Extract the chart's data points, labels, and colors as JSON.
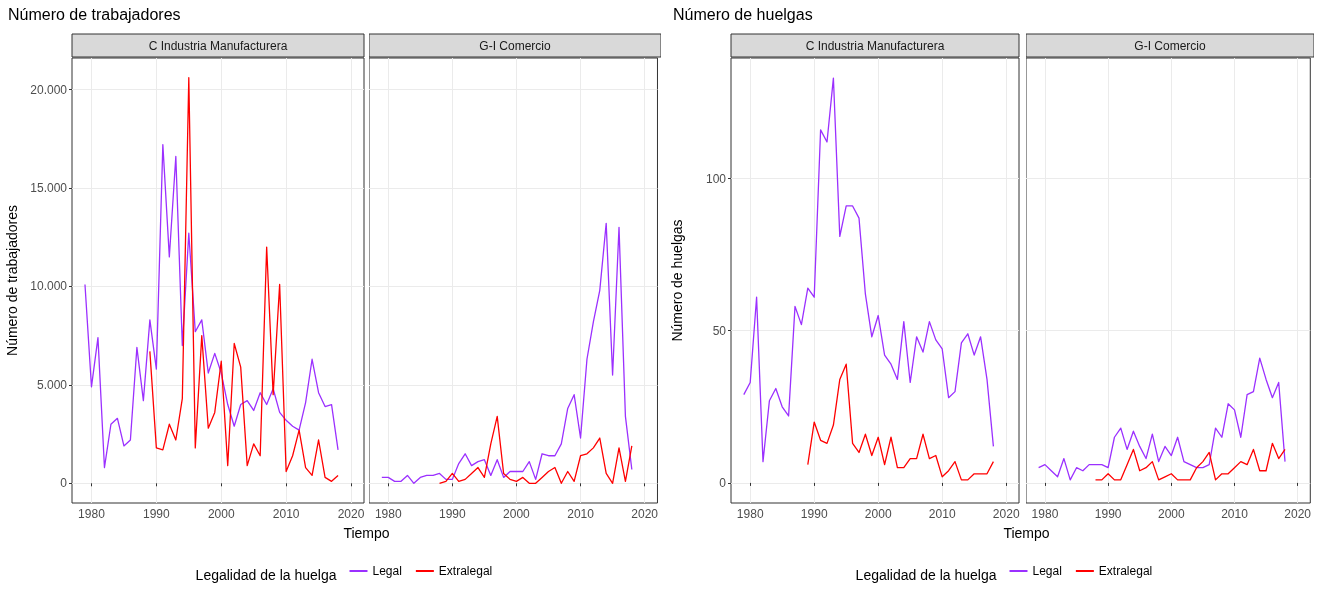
{
  "chart_data": [
    {
      "type": "line",
      "title": "Número de trabajadores",
      "subtitle": "C Industria Manufacturera",
      "xlabel": "Tiempo",
      "ylabel": "Número de trabajadores",
      "legend_title": "Legalidad de la huelga",
      "legend": "bottom",
      "grid": true,
      "xlim": [
        1977,
        2022
      ],
      "xticks": [
        1980,
        1990,
        2000,
        2010,
        2020
      ],
      "ylim": [
        -1000,
        21600
      ],
      "yticks": [
        0,
        {
          "value": 5000,
          "label": "5.000"
        },
        {
          "value": 10000,
          "label": "10.000"
        },
        {
          "value": 15000,
          "label": "15.000"
        },
        {
          "value": 20000,
          "label": "20.000"
        }
      ],
      "x": [
        1979,
        1980,
        1981,
        1982,
        1983,
        1984,
        1985,
        1986,
        1987,
        1988,
        1989,
        1990,
        1991,
        1992,
        1993,
        1994,
        1995,
        1996,
        1997,
        1998,
        1999,
        2000,
        2001,
        2002,
        2003,
        2004,
        2005,
        2006,
        2007,
        2008,
        2009,
        2010,
        2011,
        2012,
        2013,
        2014,
        2015,
        2016,
        2017,
        2018
      ],
      "series": [
        {
          "name": "Legal",
          "color": "#9b30ff",
          "values": [
            10100,
            4900,
            7400,
            800,
            3000,
            3300,
            1900,
            2200,
            6900,
            4200,
            8300,
            5800,
            17200,
            11500,
            16600,
            7000,
            12700,
            7700,
            8300,
            5600,
            6600,
            5600,
            4000,
            2900,
            4000,
            4200,
            3700,
            4600,
            4000,
            4800,
            3600,
            3200,
            2900,
            2700,
            4100,
            6300,
            4600,
            3900,
            4000,
            1700
          ]
        },
        {
          "name": "Extralegal",
          "color": "#ff0000",
          "values": [
            null,
            null,
            null,
            null,
            null,
            null,
            null,
            null,
            null,
            null,
            6700,
            1800,
            1700,
            3000,
            2200,
            4300,
            20600,
            1800,
            7500,
            2800,
            3600,
            6200,
            900,
            7100,
            5900,
            900,
            2000,
            1400,
            12000,
            4500,
            10100,
            600,
            1400,
            2700,
            800,
            400,
            2200,
            300,
            100,
            400
          ]
        }
      ]
    },
    {
      "type": "line",
      "subtitle": "G-I Comercio",
      "grid": true,
      "tick_labels": "x",
      "xlim": [
        1977,
        2022
      ],
      "xticks": [
        1980,
        1990,
        2000,
        2010,
        2020
      ],
      "ylim": [
        -1000,
        21600
      ],
      "yticks": [
        0,
        5000,
        10000,
        15000,
        20000
      ],
      "x": [
        1979,
        1980,
        1981,
        1982,
        1983,
        1984,
        1985,
        1986,
        1987,
        1988,
        1989,
        1990,
        1991,
        1992,
        1993,
        1994,
        1995,
        1996,
        1997,
        1998,
        1999,
        2000,
        2001,
        2002,
        2003,
        2004,
        2005,
        2006,
        2007,
        2008,
        2009,
        2010,
        2011,
        2012,
        2013,
        2014,
        2015,
        2016,
        2017,
        2018
      ],
      "series": [
        {
          "color": "#9b30ff",
          "values": [
            300,
            300,
            100,
            100,
            400,
            0,
            300,
            400,
            400,
            500,
            200,
            200,
            1000,
            1500,
            900,
            1100,
            1200,
            400,
            1200,
            300,
            600,
            600,
            600,
            1100,
            200,
            1500,
            1400,
            1400,
            2000,
            3800,
            4500,
            2300,
            6300,
            8200,
            9800,
            13200,
            5500,
            13000,
            3400,
            700
          ]
        },
        {
          "color": "#ff0000",
          "values": [
            null,
            null,
            null,
            null,
            null,
            null,
            null,
            null,
            null,
            0,
            100,
            500,
            100,
            200,
            500,
            800,
            300,
            2000,
            3400,
            500,
            200,
            100,
            300,
            0,
            0,
            300,
            600,
            800,
            0,
            600,
            100,
            1400,
            1500,
            1800,
            2300,
            500,
            0,
            1800,
            100,
            1900
          ]
        }
      ]
    },
    {
      "type": "line",
      "title": "Número de huelgas",
      "subtitle": "C Industria Manufacturera",
      "xlabel": "Tiempo",
      "ylabel": "Número de huelgas",
      "legend_title": "Legalidad de la huelga",
      "legend": "bottom",
      "grid": true,
      "xlim": [
        1977,
        2022
      ],
      "xticks": [
        1980,
        1990,
        2000,
        2010,
        2020
      ],
      "ylim": [
        -6.6,
        139.6
      ],
      "yticks": [
        0,
        50,
        100
      ],
      "x": [
        1979,
        1980,
        1981,
        1982,
        1983,
        1984,
        1985,
        1986,
        1987,
        1988,
        1989,
        1990,
        1991,
        1992,
        1993,
        1994,
        1995,
        1996,
        1997,
        1998,
        1999,
        2000,
        2001,
        2002,
        2003,
        2004,
        2005,
        2006,
        2007,
        2008,
        2009,
        2010,
        2011,
        2012,
        2013,
        2014,
        2015,
        2016,
        2017,
        2018
      ],
      "series": [
        {
          "name": "Legal",
          "color": "#9b30ff",
          "values": [
            29,
            33,
            61,
            7,
            27,
            31,
            25,
            22,
            58,
            52,
            64,
            61,
            116,
            112,
            133,
            81,
            91,
            91,
            87,
            62,
            48,
            55,
            42,
            39,
            34,
            53,
            33,
            48,
            43,
            53,
            47,
            44,
            28,
            30,
            46,
            49,
            42,
            48,
            34,
            12
          ]
        },
        {
          "name": "Extralegal",
          "color": "#ff0000",
          "values": [
            null,
            null,
            null,
            null,
            null,
            null,
            null,
            null,
            null,
            null,
            6,
            20,
            14,
            13,
            19,
            34,
            39,
            13,
            10,
            16,
            9,
            15,
            6,
            15,
            5,
            5,
            8,
            8,
            16,
            8,
            9,
            2,
            4,
            7,
            1,
            1,
            3,
            3,
            3,
            7
          ]
        }
      ]
    },
    {
      "type": "line",
      "subtitle": "G-I Comercio",
      "grid": true,
      "tick_labels": "x",
      "xlim": [
        1977,
        2022
      ],
      "xticks": [
        1980,
        1990,
        2000,
        2010,
        2020
      ],
      "ylim": [
        -6.6,
        139.6
      ],
      "yticks": [
        0,
        50,
        100
      ],
      "x": [
        1979,
        1980,
        1981,
        1982,
        1983,
        1984,
        1985,
        1986,
        1987,
        1988,
        1989,
        1990,
        1991,
        1992,
        1993,
        1994,
        1995,
        1996,
        1997,
        1998,
        1999,
        2000,
        2001,
        2002,
        2003,
        2004,
        2005,
        2006,
        2007,
        2008,
        2009,
        2010,
        2011,
        2012,
        2013,
        2014,
        2015,
        2016,
        2017,
        2018
      ],
      "series": [
        {
          "color": "#9b30ff",
          "values": [
            5,
            6,
            4,
            2,
            8,
            1,
            5,
            4,
            6,
            6,
            6,
            5,
            15,
            18,
            11,
            17,
            12,
            8,
            16,
            7,
            12,
            9,
            15,
            7,
            6,
            5,
            5,
            6,
            18,
            15,
            26,
            24,
            15,
            29,
            30,
            41,
            34,
            28,
            33,
            7
          ]
        },
        {
          "color": "#ff0000",
          "values": [
            null,
            null,
            null,
            null,
            null,
            null,
            null,
            null,
            null,
            1,
            1,
            3,
            1,
            1,
            6,
            11,
            4,
            5,
            7,
            1,
            2,
            3,
            1,
            1,
            1,
            5,
            7,
            10,
            1,
            3,
            3,
            5,
            7,
            6,
            11,
            4,
            4,
            13,
            8,
            11
          ]
        }
      ]
    }
  ]
}
